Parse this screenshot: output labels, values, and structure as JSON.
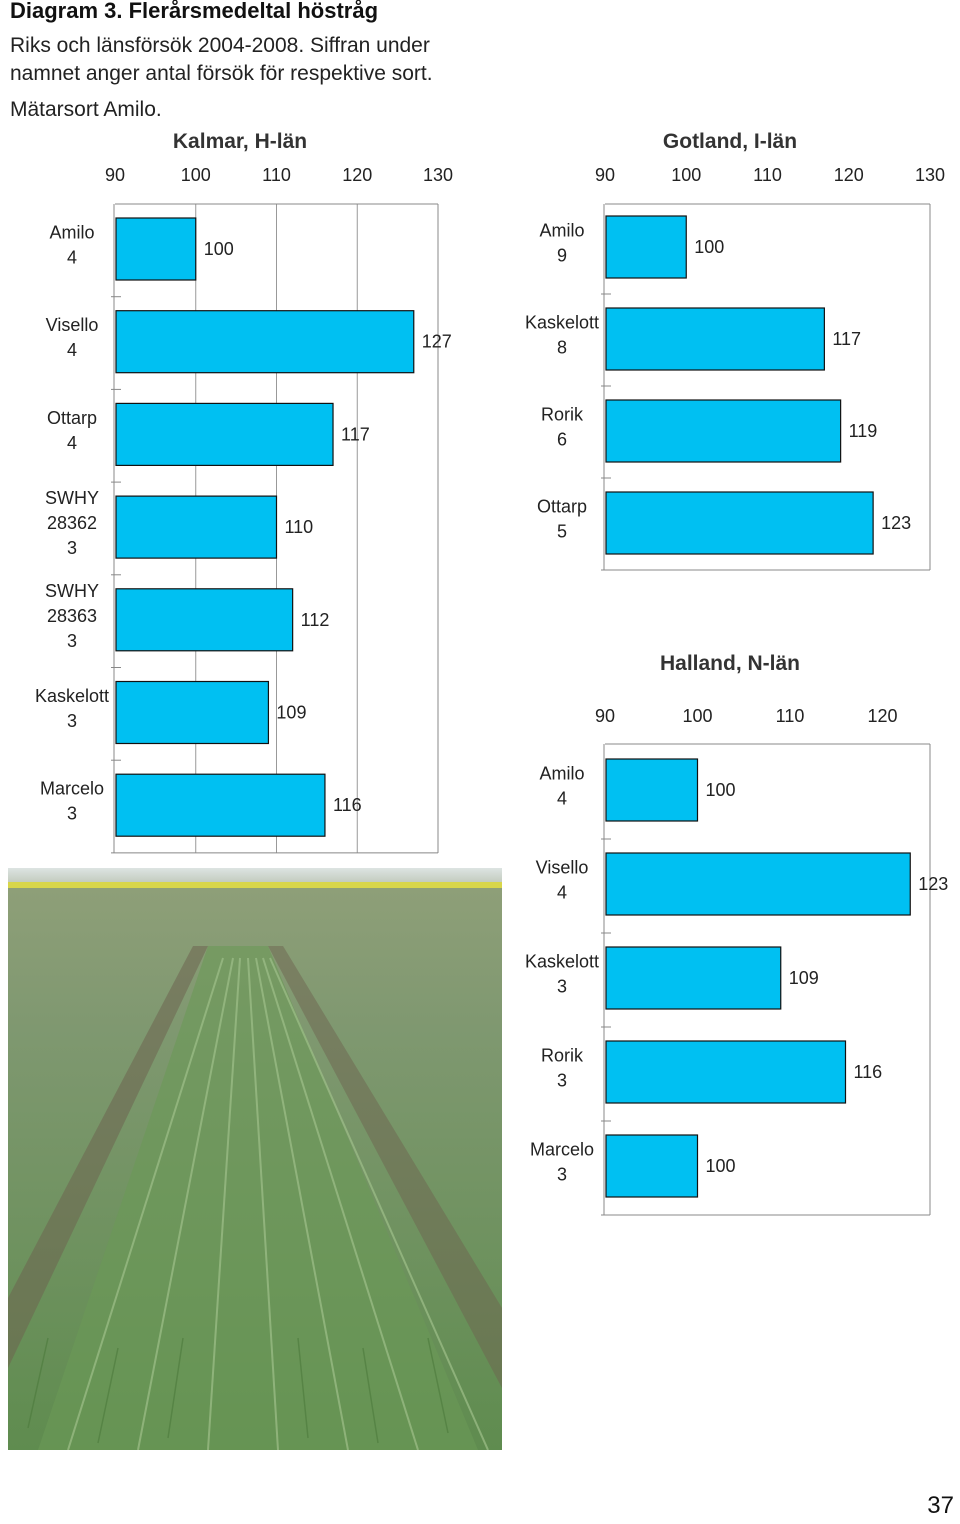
{
  "header": {
    "title": "Diagram 3. Flerårsmedeltal höstråg",
    "line1": "Riks och länsförsök 2004-2008. Siffran under",
    "line2": "namnet anger antal försök för respektive sort.",
    "line3": "Mätarsort  Amilo."
  },
  "page_number": "37",
  "chart_data": [
    {
      "type": "bar",
      "orientation": "horizontal",
      "title": "Kalmar, H-län",
      "xlim": [
        90,
        130
      ],
      "xticks": [
        "90",
        "100",
        "110",
        "120",
        "130"
      ],
      "grid": true,
      "categories": [
        [
          "Amilo",
          "4"
        ],
        [
          "Visello",
          "4"
        ],
        [
          "Ottarp",
          "4"
        ],
        [
          "SWHY",
          "28362",
          "3"
        ],
        [
          "SWHY",
          "28363",
          "3"
        ],
        [
          "Kaskelott",
          "3"
        ],
        [
          "Marcelo",
          "3"
        ]
      ],
      "values": [
        100,
        127,
        117,
        110,
        112,
        109,
        116
      ]
    },
    {
      "type": "bar",
      "orientation": "horizontal",
      "title": "Gotland, I-län",
      "xlim": [
        90,
        130
      ],
      "xticks": [
        "90",
        "100",
        "110",
        "120",
        "130"
      ],
      "grid": false,
      "categories": [
        [
          "Amilo",
          "9"
        ],
        [
          "Kaskelott",
          "8"
        ],
        [
          "Rorik",
          "6"
        ],
        [
          "Ottarp",
          "5"
        ]
      ],
      "values": [
        100,
        117,
        119,
        123
      ]
    },
    {
      "type": "bar",
      "orientation": "horizontal",
      "title": "Halland, N-län",
      "xlim": [
        90,
        123
      ],
      "xticks": [
        "90",
        "100",
        "110",
        "120"
      ],
      "grid": false,
      "categories": [
        [
          "Amilo",
          "4"
        ],
        [
          "Visello",
          "4"
        ],
        [
          "Kaskelott",
          "3"
        ],
        [
          "Rorik",
          "3"
        ],
        [
          "Marcelo",
          "3"
        ]
      ],
      "values": [
        100,
        123,
        109,
        116,
        100
      ]
    }
  ],
  "colors": {
    "bar": "#00c0f2",
    "bar_outline": "#111111",
    "frame": "#888888"
  },
  "photo": {
    "icon": "wheat-field-photo"
  }
}
